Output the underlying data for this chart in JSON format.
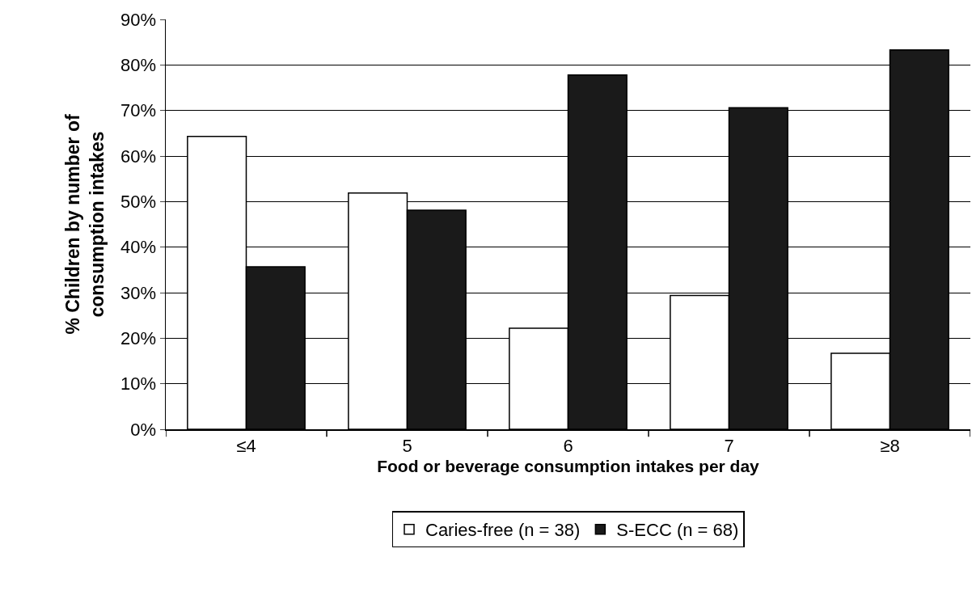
{
  "chart_data": {
    "type": "bar",
    "categories": [
      "≤4",
      "5",
      "6",
      "7",
      "≥8"
    ],
    "series": [
      {
        "name": "Caries-free (n = 38)",
        "color": "#ffffff",
        "values": [
          64.3,
          51.9,
          22.2,
          29.4,
          16.7
        ]
      },
      {
        "name": "S-ECC (n = 68)",
        "color": "#1a1a1a",
        "values": [
          35.7,
          48.1,
          77.8,
          70.6,
          83.3
        ]
      }
    ],
    "xlabel": "Food or beverage consumption intakes per day",
    "ylabel": "% Children by number of\nconsumption intakes",
    "ylim": [
      0,
      90
    ],
    "yticks": [
      {
        "value": 0,
        "label": "0%"
      },
      {
        "value": 10,
        "label": "10%"
      },
      {
        "value": 20,
        "label": "20%"
      },
      {
        "value": 30,
        "label": "30%"
      },
      {
        "value": 40,
        "label": "40%"
      },
      {
        "value": 50,
        "label": "50%"
      },
      {
        "value": 60,
        "label": "60%"
      },
      {
        "value": 70,
        "label": "70%"
      },
      {
        "value": 80,
        "label": "80%"
      },
      {
        "value": 90,
        "label": "90%"
      }
    ],
    "grid": "y",
    "legend": "bottom"
  }
}
